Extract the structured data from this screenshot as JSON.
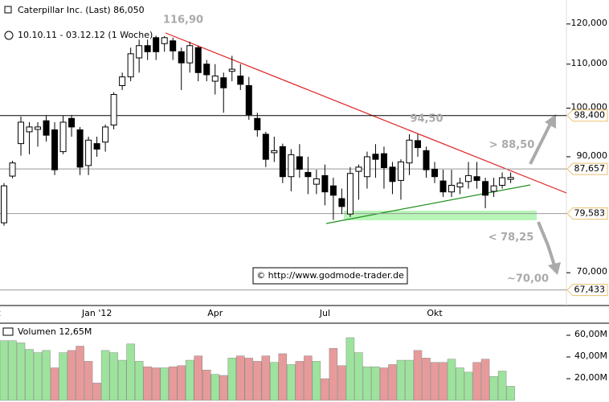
{
  "chart_data": [
    {
      "type": "candlestick",
      "title": "Caterpillar Inc. (Last) 86,050",
      "subtitle": "10.10.11 - 03.12.12 (1 Woche)",
      "watermark": "© http://www.godmode-trader.de",
      "categories": [
        "Okt",
        null,
        null,
        null,
        null,
        null,
        null,
        null,
        null,
        null,
        null,
        "Jan '12",
        null,
        null,
        null,
        null,
        null,
        null,
        null,
        null,
        null,
        null,
        null,
        null,
        null,
        "Apr",
        null,
        null,
        null,
        null,
        null,
        null,
        null,
        null,
        null,
        null,
        null,
        null,
        "Jul",
        null,
        null,
        null,
        null,
        null,
        null,
        null,
        null,
        null,
        null,
        null,
        null,
        "Okt",
        null,
        null,
        null,
        null,
        null,
        null,
        null,
        null,
        null
      ],
      "open": [
        78.0,
        86.3,
        92.6,
        95,
        95.5,
        97.3,
        95.4,
        91,
        97.8,
        95.4,
        88.3,
        92.6,
        92.9,
        96.4,
        105,
        107,
        111.5,
        114.5,
        116.5,
        115,
        115.7,
        113,
        110.3,
        114,
        110,
        106,
        106.8,
        108.3,
        107.2,
        105,
        97.8,
        94.5,
        90.8,
        92,
        86.2,
        90,
        87,
        84.8,
        86.4,
        84.5,
        82.2,
        79.5,
        87.2,
        86.2,
        90.5,
        90.6,
        88,
        85.5,
        88.8,
        93.2,
        91.2,
        87.6,
        85.4,
        83.4,
        84.3,
        85.3,
        86.2,
        85.3,
        83.5,
        84.6,
        85.7
      ],
      "high": [
        85,
        89.2,
        98.2,
        97,
        97,
        98.5,
        97,
        98.4,
        98.5,
        96,
        94,
        94,
        96.5,
        103.5,
        108,
        114,
        116,
        116,
        117,
        116.9,
        116.5,
        114,
        115.5,
        114.5,
        111,
        110,
        108,
        112,
        110,
        107,
        99,
        95,
        94,
        92.6,
        91.5,
        92.5,
        90,
        87.5,
        88.5,
        86,
        84,
        88,
        88.5,
        91,
        92.5,
        92,
        89,
        89.5,
        94.5,
        94.5,
        92,
        89,
        87.5,
        87.5,
        86,
        89,
        89,
        86,
        86,
        87,
        87
      ],
      "low": [
        77.5,
        85.9,
        90.2,
        90.5,
        92,
        93,
        86.5,
        90.5,
        94,
        86.5,
        86.5,
        90,
        91,
        95.5,
        104,
        106,
        108,
        111,
        111,
        113,
        111,
        104,
        108,
        106,
        106,
        103,
        99,
        106,
        104,
        97.5,
        94,
        88,
        89,
        85,
        83.5,
        86,
        83,
        83,
        81,
        78.5,
        79.5,
        79,
        82,
        84,
        86,
        84,
        83,
        82,
        86.5,
        90,
        86,
        85,
        82.5,
        82.5,
        83,
        84,
        84,
        80.5,
        82.5,
        84,
        85
      ],
      "close": [
        84.5,
        88.8,
        97,
        96,
        96,
        94.3,
        87.5,
        97,
        96,
        88,
        93.3,
        91.5,
        96,
        103,
        107,
        112.5,
        114.5,
        113,
        113,
        116.5,
        113.2,
        110.3,
        114.5,
        108,
        107.5,
        107.2,
        104.5,
        108.8,
        105.3,
        98.6,
        95.4,
        89.5,
        91.2,
        86.2,
        90.4,
        87.6,
        86.2,
        85.8,
        83.4,
        82.8,
        80.8,
        86.8,
        88,
        90,
        89.5,
        87.9,
        85.3,
        89,
        93.3,
        91.8,
        87.5,
        86.2,
        83.4,
        84.6,
        85,
        86.4,
        85.5,
        82.8,
        84.5,
        86,
        86.05
      ],
      "ylim": [
        65.2,
        126.4
      ],
      "log_scale": true,
      "yticks": [
        {
          "value": 120,
          "label": "120,000"
        },
        {
          "value": 110,
          "label": "110,000"
        },
        {
          "value": 100,
          "label": "100,000"
        },
        {
          "value": 90,
          "label": "90,000"
        },
        {
          "value": 70,
          "label": "70,000"
        }
      ],
      "levels": [
        {
          "value": 98.4,
          "label": "98,400",
          "color": "#000000"
        },
        {
          "value": 87.657,
          "label": "87,657",
          "color": "#999999"
        },
        {
          "value": 79.583,
          "label": "79,583",
          "color": "#999999"
        },
        {
          "value": 67.433,
          "label": "67,433",
          "color": "#999999"
        }
      ],
      "annotations": [
        {
          "value": 116.9,
          "label": "116,90"
        },
        {
          "value": 94.5,
          "label": "94,50"
        },
        {
          "value": 88.5,
          "label": "> 88,50"
        },
        {
          "value": 78.25,
          "label": "< 78,25"
        },
        {
          "value": 70,
          "label": "~70,00"
        }
      ]
    },
    {
      "type": "bar",
      "title": "Volumen 12,65M",
      "values": [
        55,
        55,
        53,
        47,
        44,
        46,
        30,
        44,
        46,
        50,
        36,
        16,
        46,
        44,
        37,
        52,
        36,
        31,
        30,
        30,
        31,
        32,
        37,
        41,
        28,
        24,
        23,
        39,
        41,
        39,
        36,
        41,
        35,
        43,
        33,
        36,
        41,
        36,
        20,
        48,
        32,
        59,
        44,
        31,
        31,
        30,
        33,
        37,
        37,
        46,
        39,
        35,
        35,
        38,
        30,
        26,
        35,
        38,
        22,
        27,
        13
      ],
      "colors": [
        "#9de39d",
        "#9de39d",
        "#9de39d",
        "#9de39d",
        "#9de39d",
        "#9de39d",
        "#e79a9a",
        "#9de39d",
        "#e79a9a",
        "#e79a9a",
        "#e79a9a",
        "#e79a9a",
        "#9de39d",
        "#9de39d",
        "#9de39d",
        "#9de39d",
        "#9de39d",
        "#e79a9a",
        "#e79a9a",
        "#9de39d",
        "#e79a9a",
        "#e79a9a",
        "#9de39d",
        "#e79a9a",
        "#e79a9a",
        "#9de39d",
        "#e79a9a",
        "#9de39d",
        "#e79a9a",
        "#e79a9a",
        "#e79a9a",
        "#e79a9a",
        "#9de39d",
        "#e79a9a",
        "#9de39d",
        "#e79a9a",
        "#e79a9a",
        "#9de39d",
        "#e79a9a",
        "#e79a9a",
        "#e79a9a",
        "#9de39d",
        "#9de39d",
        "#9de39d",
        "#9de39d",
        "#e79a9a",
        "#e79a9a",
        "#9de39d",
        "#9de39d",
        "#e79a9a",
        "#e79a9a",
        "#e79a9a",
        "#e79a9a",
        "#9de39d",
        "#9de39d",
        "#9de39d",
        "#e79a9a",
        "#e79a9a",
        "#9de39d",
        "#9de39d",
        "#9de39d"
      ],
      "ylim": [
        0,
        70
      ],
      "yticks": [
        {
          "value": 20,
          "label": "20,00M"
        },
        {
          "value": 40,
          "label": "40,00M"
        },
        {
          "value": 60,
          "label": "60,00M"
        }
      ]
    }
  ]
}
